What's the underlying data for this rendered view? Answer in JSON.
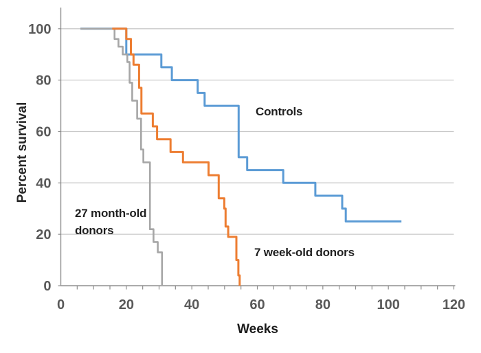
{
  "figure": {
    "background": "#ffffff",
    "description": "Kaplan-Meier style percent survival step chart with three groups"
  },
  "chart_data": {
    "type": "line",
    "subtype": "step-survival",
    "title": "",
    "xlabel": "Weeks",
    "ylabel": "Percent survival",
    "xlim": [
      0,
      120
    ],
    "ylim": [
      0,
      100
    ],
    "xticks": [
      0,
      20,
      40,
      60,
      80,
      100,
      120
    ],
    "yticks": [
      0,
      20,
      40,
      60,
      80,
      100
    ],
    "x_minor_tick_step": 5,
    "grid": "horizontal",
    "legend_position": "none (inline text labels next to curves)",
    "colors": {
      "grid": "#c9c9c9",
      "axis": "#8f8f8f",
      "tick_label": "#595959",
      "annotation_text": "#1f1f1f"
    },
    "series": [
      {
        "name": "Controls",
        "slug": "controls",
        "color": "#5b9bd5",
        "stroke_width": 3,
        "points": [
          [
            6,
            100
          ],
          [
            20,
            100
          ],
          [
            20,
            90
          ],
          [
            30.7,
            90
          ],
          [
            30.7,
            85
          ],
          [
            33.9,
            85
          ],
          [
            33.9,
            80
          ],
          [
            41.8,
            80
          ],
          [
            41.8,
            75
          ],
          [
            43.9,
            75
          ],
          [
            43.9,
            70
          ],
          [
            54.3,
            70
          ],
          [
            54.3,
            50
          ],
          [
            56.9,
            50
          ],
          [
            56.9,
            45
          ],
          [
            67.9,
            45
          ],
          [
            67.9,
            40
          ],
          [
            77.7,
            40
          ],
          [
            77.7,
            35
          ],
          [
            85.9,
            35
          ],
          [
            85.9,
            30
          ],
          [
            87,
            30
          ],
          [
            87,
            25
          ],
          [
            104,
            25
          ]
        ]
      },
      {
        "name": "27 month-old donors",
        "slug": "27-month-old-donors",
        "color": "#a6a6a6",
        "stroke_width": 2.6,
        "points": [
          [
            6,
            100
          ],
          [
            16.4,
            100
          ],
          [
            16.4,
            96
          ],
          [
            17.6,
            96
          ],
          [
            17.6,
            93
          ],
          [
            18.9,
            93
          ],
          [
            18.9,
            90
          ],
          [
            20.3,
            90
          ],
          [
            20.3,
            87
          ],
          [
            21,
            87
          ],
          [
            21,
            79
          ],
          [
            21.8,
            79
          ],
          [
            21.8,
            72
          ],
          [
            23.3,
            72
          ],
          [
            23.3,
            65
          ],
          [
            24.5,
            65
          ],
          [
            24.5,
            53
          ],
          [
            25.2,
            53
          ],
          [
            25.2,
            48
          ],
          [
            27.2,
            48
          ],
          [
            27.2,
            22
          ],
          [
            28.3,
            22
          ],
          [
            28.3,
            17
          ],
          [
            29.6,
            17
          ],
          [
            29.6,
            13
          ],
          [
            30.9,
            13
          ],
          [
            30.9,
            0
          ]
        ]
      },
      {
        "name": "7 week-old donors",
        "slug": "7-week-old-donors",
        "color": "#ed7d31",
        "stroke_width": 3,
        "points": [
          [
            15.7,
            100
          ],
          [
            20,
            100
          ],
          [
            20,
            96
          ],
          [
            21.4,
            96
          ],
          [
            21.4,
            90
          ],
          [
            22.2,
            90
          ],
          [
            22.2,
            86
          ],
          [
            23.9,
            86
          ],
          [
            23.9,
            77
          ],
          [
            24.6,
            77
          ],
          [
            24.6,
            67
          ],
          [
            28.1,
            67
          ],
          [
            28.1,
            62
          ],
          [
            29.4,
            62
          ],
          [
            29.4,
            57
          ],
          [
            33.5,
            57
          ],
          [
            33.5,
            52
          ],
          [
            37.3,
            52
          ],
          [
            37.3,
            48
          ],
          [
            45.1,
            48
          ],
          [
            45.1,
            43
          ],
          [
            48.2,
            43
          ],
          [
            48.2,
            34
          ],
          [
            49.9,
            34
          ],
          [
            49.9,
            30
          ],
          [
            50.3,
            30
          ],
          [
            50.3,
            23
          ],
          [
            51.1,
            23
          ],
          [
            51.1,
            19
          ],
          [
            53.6,
            19
          ],
          [
            53.6,
            10
          ],
          [
            54.2,
            10
          ],
          [
            54.2,
            4
          ],
          [
            54.6,
            4
          ],
          [
            54.6,
            0
          ]
        ]
      }
    ],
    "annotations": [
      {
        "text": "Controls",
        "x": 59.5,
        "y": 71.2,
        "series": "Controls"
      },
      {
        "text": "27 month-old\ndonors",
        "x": 4.3,
        "y": 31.6,
        "series": "27 month-old donors"
      },
      {
        "text": "7 week-old donors",
        "x": 59.1,
        "y": 16.2,
        "series": "7 week-old donors"
      }
    ]
  }
}
